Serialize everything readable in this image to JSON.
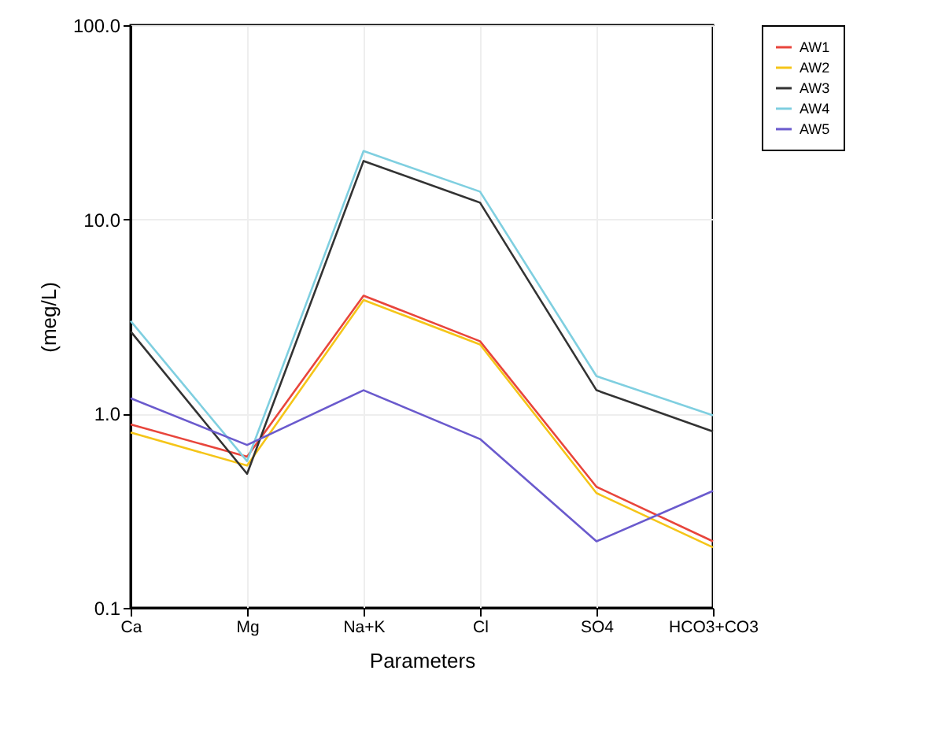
{
  "chart_data": {
    "type": "line",
    "xlabel": "Parameters",
    "ylabel": "(meg/L)",
    "categories": [
      "Ca",
      "Mg",
      "Na+K",
      "Cl",
      "SO4",
      "HCO3+CO3"
    ],
    "series": [
      {
        "name": "AW1",
        "color": "#e8453c",
        "values": [
          0.88,
          0.6,
          4.05,
          2.36,
          0.42,
          0.22
        ]
      },
      {
        "name": "AW2",
        "color": "#f5c518",
        "values": [
          0.8,
          0.54,
          3.85,
          2.27,
          0.39,
          0.205
        ]
      },
      {
        "name": "AW3",
        "color": "#333333",
        "values": [
          2.65,
          0.49,
          20,
          12.2,
          1.32,
          0.81
        ]
      },
      {
        "name": "AW4",
        "color": "#7fcfe0",
        "values": [
          3.0,
          0.57,
          22.5,
          13.9,
          1.56,
          0.98
        ]
      },
      {
        "name": "AW5",
        "color": "#6a5acd",
        "values": [
          1.2,
          0.69,
          1.32,
          0.74,
          0.22,
          0.4
        ]
      }
    ],
    "log": "y",
    "ylim": [
      0.1,
      100
    ],
    "yticks": [
      {
        "value": 0.1,
        "label": "0.1"
      },
      {
        "value": 1,
        "label": "1.0"
      },
      {
        "value": 10,
        "label": "10.0"
      },
      {
        "value": 100,
        "label": "100.0"
      }
    ],
    "grid": true,
    "legend": "top right",
    "line_style": "solid",
    "marker": "none"
  }
}
